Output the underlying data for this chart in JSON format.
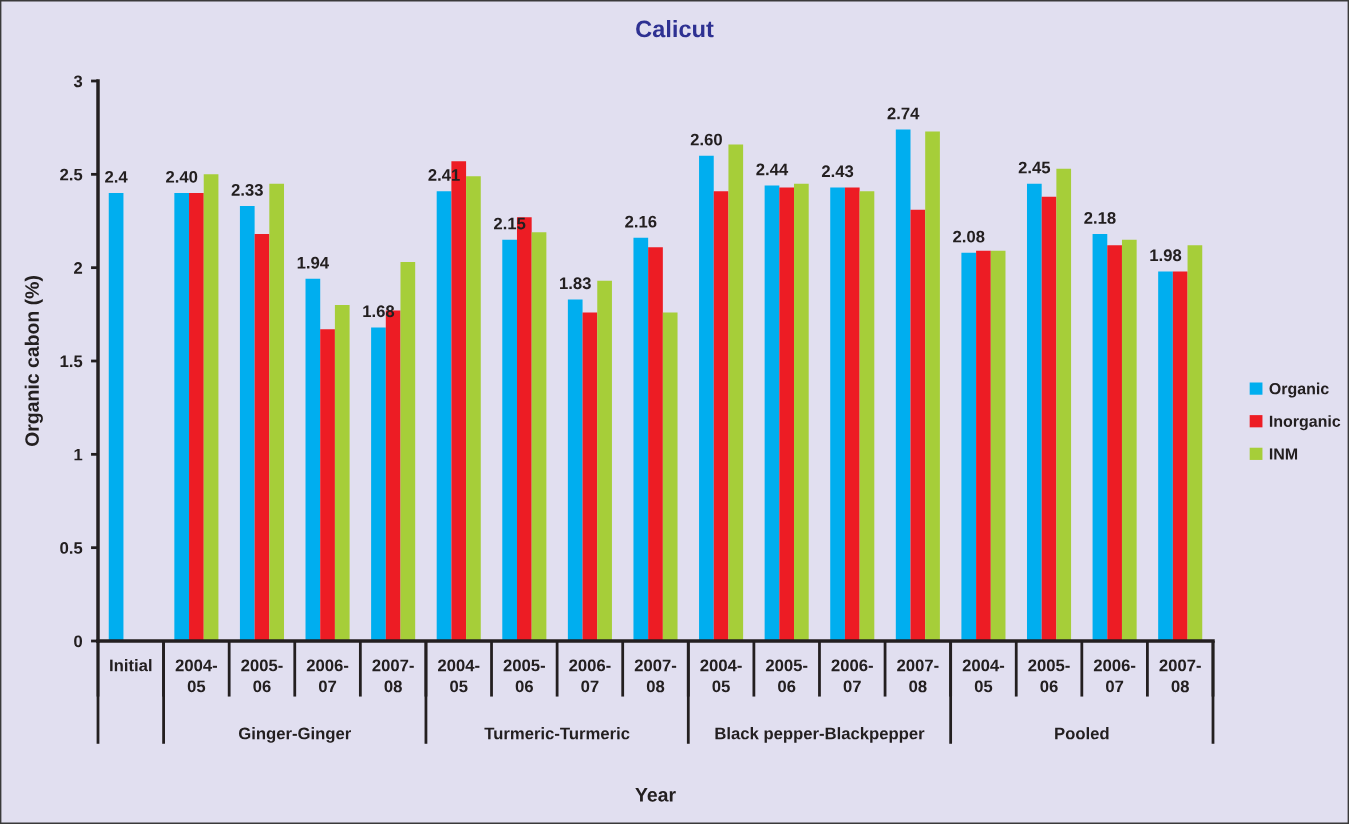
{
  "chart_data": {
    "type": "bar",
    "title": "Calicut",
    "xlabel": "Year",
    "ylabel": "Organic cabon (%)",
    "categories": [
      "Initial",
      "2004-\n05",
      "2005-\n06",
      "2006-\n07",
      "2007-\n08",
      "2004-\n05",
      "2005-\n06",
      "2006-\n07",
      "2007-\n08",
      "2004-\n05",
      "2005-\n06",
      "2006-\n07",
      "2007-\n08",
      "2004-\n05",
      "2005-\n06",
      "2006-\n07",
      "2007-\n08"
    ],
    "annotations": [
      "Ginger-Ginger",
      "Turmeric-Turmeric",
      "Black pepper-Blackpepper",
      "Pooled"
    ],
    "series": [
      {
        "name": "Organic",
        "color": "#00aeef",
        "values": [
          2.4,
          2.4,
          2.33,
          1.94,
          1.68,
          2.41,
          2.15,
          1.83,
          2.16,
          2.6,
          2.44,
          2.43,
          2.74,
          2.08,
          2.45,
          2.18,
          1.98
        ],
        "value_labels": [
          "2.4",
          "2.40",
          "2.33",
          "1.94",
          "1.68",
          "2.41",
          "2.15",
          "1.83",
          "2.16",
          "2.60",
          "2.44",
          "2.43",
          "2.74",
          "2.08",
          "2.45",
          "2.18",
          "1.98"
        ]
      },
      {
        "name": "Inorganic",
        "color": "#ed1c24",
        "values": [
          null,
          2.4,
          2.18,
          1.67,
          1.77,
          2.57,
          2.27,
          1.76,
          2.11,
          2.41,
          2.43,
          2.43,
          2.31,
          2.09,
          2.38,
          2.12,
          1.98
        ]
      },
      {
        "name": "INM",
        "color": "#a6ce39",
        "values": [
          null,
          2.5,
          2.45,
          1.8,
          2.03,
          2.49,
          2.19,
          1.93,
          1.76,
          2.66,
          2.45,
          2.41,
          2.73,
          2.09,
          2.53,
          2.15,
          2.12
        ]
      }
    ],
    "ylim": [
      0,
      3
    ],
    "yticks": [
      0,
      0.5,
      1,
      1.5,
      2,
      2.5,
      3
    ],
    "legend": "right"
  }
}
